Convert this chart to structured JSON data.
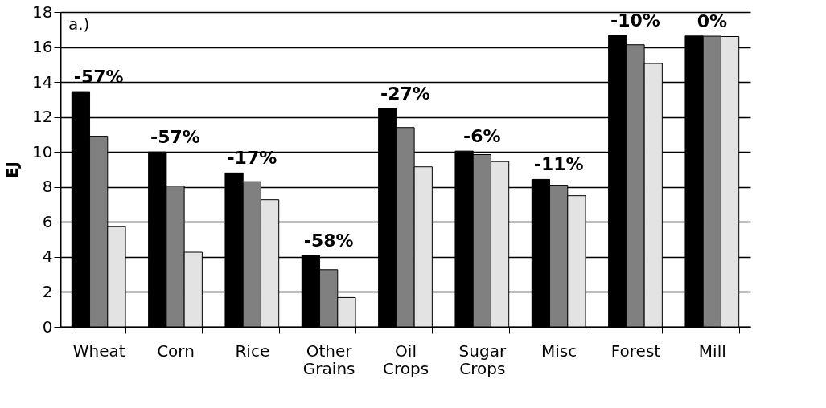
{
  "chart_data": {
    "type": "bar",
    "ylabel": "EJ",
    "categories": [
      "Wheat",
      "Corn",
      "Rice",
      "Other Grains",
      "Oil Crops",
      "Sugar Crops",
      "Misc",
      "Forest",
      "Mill"
    ],
    "series": [
      {
        "color": "#000000",
        "values": [
          13.45,
          10.0,
          8.8,
          4.1,
          12.5,
          10.05,
          8.43,
          16.67,
          16.63
        ]
      },
      {
        "color": "#808080",
        "values": [
          10.9,
          8.05,
          8.3,
          3.27,
          11.4,
          9.85,
          8.1,
          16.13,
          16.62
        ]
      },
      {
        "color": "#e3e3e3",
        "values": [
          5.73,
          4.27,
          7.27,
          1.68,
          9.15,
          9.45,
          7.5,
          15.06,
          16.6
        ]
      }
    ],
    "ylim": [
      0,
      18
    ],
    "yticks": [
      0,
      2,
      4,
      6,
      8,
      10,
      12,
      14,
      16,
      18
    ],
    "grid": "y",
    "annotations": [
      "a.)",
      "-57%",
      "-57%",
      "-17%",
      "-58%",
      "-27%",
      "-6%",
      "-11%",
      "-10%",
      "0%"
    ]
  }
}
